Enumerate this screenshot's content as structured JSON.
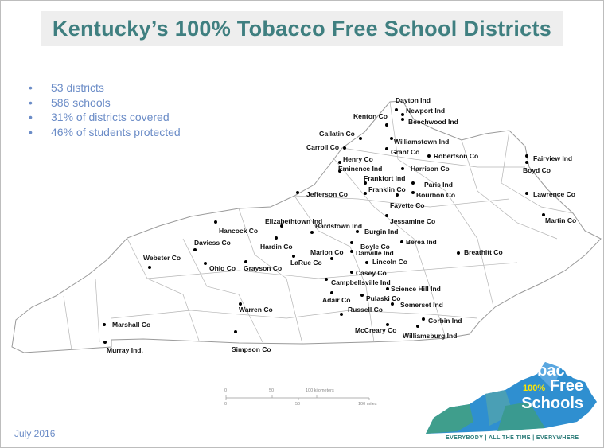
{
  "title": "Kentucky’s 100% Tobacco Free School Districts",
  "stats": [
    {
      "bullet": "•",
      "text": "53 districts"
    },
    {
      "bullet": "•",
      "text": "586 schools"
    },
    {
      "bullet": "•",
      "text": "31% of districts covered"
    },
    {
      "bullet": "•",
      "text": "46% of students protected"
    }
  ],
  "districts": [
    "Dayton Ind",
    "Newport Ind",
    "Beechwood Ind",
    "Kenton Co",
    "Gallatin Co",
    "Carroll Co",
    "Williamstown Ind",
    "Grant Co",
    "Henry Co",
    "Eminence Ind",
    "Robertson Co",
    "Harrison Co",
    "Frankfort Ind",
    "Franklin Co",
    "Paris Ind",
    "Bourbon Co",
    "Fayette Co",
    "Jefferson Co",
    "Jessamine Co",
    "Fairview Ind",
    "Boyd Co",
    "Lawrence Co",
    "Martin Co",
    "Hancock Co",
    "Elizabethtown Ind",
    "Bardstown Ind",
    "Burgin Ind",
    "Daviess Co",
    "Hardin Co",
    "Berea Ind",
    "Boyle Co",
    "Danville Ind",
    "Marion Co",
    "LaRue Co",
    "Breathitt Co",
    "Webster Co",
    "Ohio Co",
    "Grayson Co",
    "Lincoln Co",
    "Casey Co",
    "Campbellsville Ind",
    "Science Hill  Ind",
    "Adair Co",
    "Pulaski Co",
    "Somerset Ind",
    "Russell Co",
    "Warren Co",
    "Corbin Ind",
    "Williamsburg Ind",
    "McCreary Co",
    "Marshall Co",
    "Simpson Co",
    "Murray Ind."
  ],
  "scale_bar": {
    "km_ticks": [
      "0",
      "50",
      "100 kilometers"
    ],
    "mile_ticks": [
      "0",
      "50",
      "100 miles"
    ]
  },
  "date": "July 2016",
  "logo": {
    "line1": "Tobacco",
    "pct": "100%",
    "line2": "Free",
    "line3": "Schools",
    "tagline": "EVERYBODY | ALL THE TIME | EVERYWHERE"
  },
  "colors": {
    "title": "#3f7f80",
    "stats": "#6b8cc7",
    "logo_blue": "#2f8fd0",
    "logo_teal": "#3f9e8c",
    "logo_yellow": "#ffe600"
  }
}
